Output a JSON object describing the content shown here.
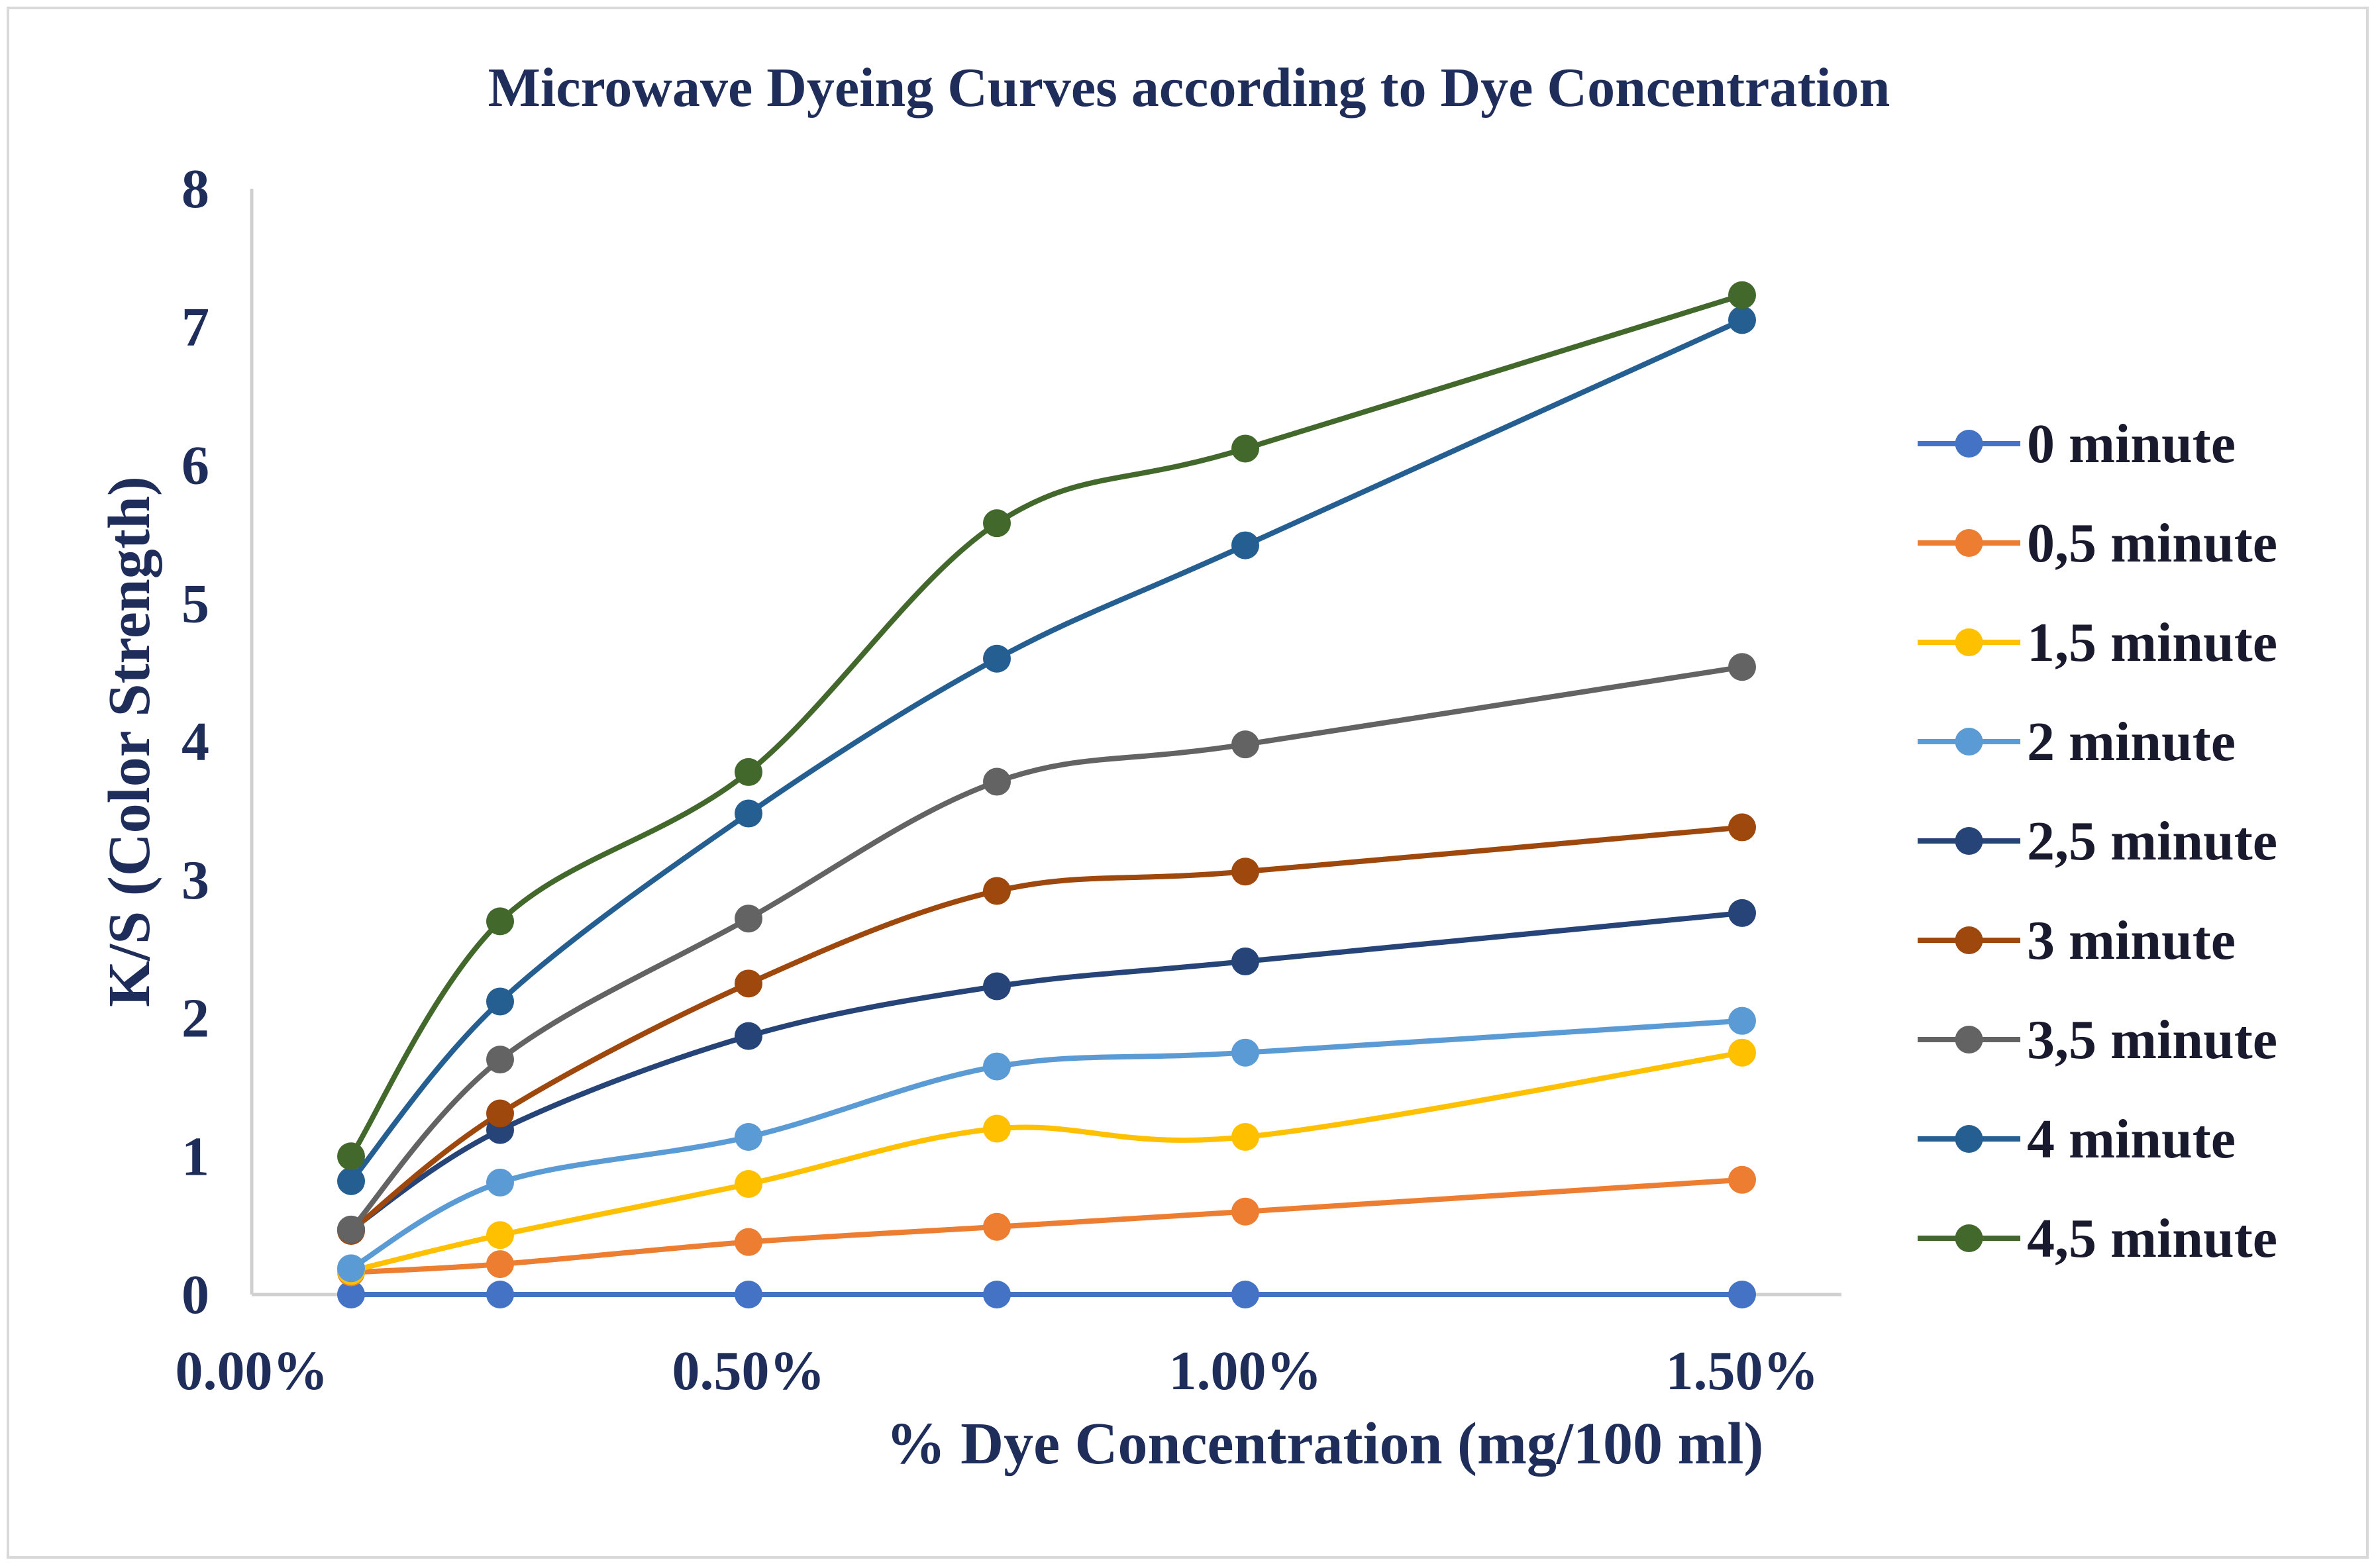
{
  "chart_data": {
    "type": "line",
    "title": "Microwave Dyeing Curves according to Dye Concentration",
    "xlabel": "% Dye Concentration (mg/100 ml)",
    "ylabel": "K/S (Color Strength)",
    "x_tick_labels": [
      "0.00%",
      "0.50%",
      "1.00%",
      "1.50%"
    ],
    "x_tick_values": [
      0,
      0.5,
      1.0,
      1.5
    ],
    "y_tick_labels": [
      "0",
      "1",
      "2",
      "3",
      "4",
      "5",
      "6",
      "7",
      "8"
    ],
    "ylim": [
      0,
      8
    ],
    "x": [
      0.1,
      0.25,
      0.5,
      0.75,
      1.0,
      1.5
    ],
    "smooth": true,
    "legend_position": "right",
    "series": [
      {
        "name": "0 minute",
        "color": "#4472c4",
        "values": [
          0,
          0,
          0,
          0,
          0,
          0
        ]
      },
      {
        "name": "0,5 minute",
        "color": "#ed7d31",
        "values": [
          0.16,
          0.22,
          0.38,
          0.49,
          0.6,
          0.83
        ]
      },
      {
        "name": "1,5 minute",
        "color": "#ffc000",
        "values": [
          0.17,
          0.43,
          0.8,
          1.2,
          1.14,
          1.75
        ]
      },
      {
        "name": "2 minute",
        "color": "#5b9bd5",
        "values": [
          0.19,
          0.81,
          1.14,
          1.65,
          1.75,
          1.98
        ]
      },
      {
        "name": "2,5 minute",
        "color": "#264478",
        "values": [
          0.47,
          1.19,
          1.87,
          2.23,
          2.41,
          2.76
        ]
      },
      {
        "name": "3 minute",
        "color": "#9e480e",
        "values": [
          0.46,
          1.31,
          2.25,
          2.92,
          3.06,
          3.38
        ]
      },
      {
        "name": "3,5 minute",
        "color": "#636363",
        "values": [
          0.47,
          1.7,
          2.72,
          3.71,
          3.98,
          4.54
        ]
      },
      {
        "name": "4 minute",
        "color": "#255e91",
        "values": [
          0.82,
          2.12,
          3.48,
          4.6,
          5.42,
          7.05
        ]
      },
      {
        "name": "4,5 minute",
        "color": "#43682b",
        "values": [
          1.0,
          2.7,
          3.78,
          5.58,
          6.12,
          7.23
        ]
      }
    ]
  }
}
